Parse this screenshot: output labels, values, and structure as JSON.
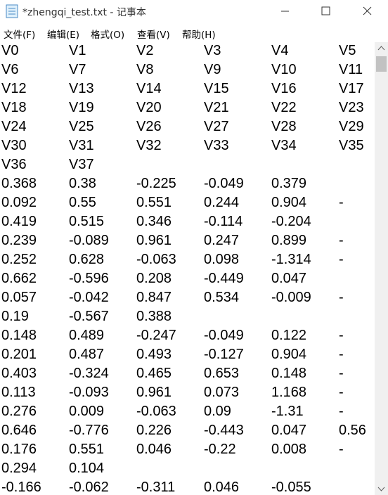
{
  "window": {
    "title": "*zhengqi_test.txt - 记事本"
  },
  "menu": [
    "文件(F)",
    "编辑(E)",
    "格式(O)",
    "查看(V)",
    "帮助(H)"
  ],
  "document": {
    "lines": [
      [
        "V0",
        "V1",
        "V2",
        "V3",
        "V4",
        "V5"
      ],
      [
        "V6",
        "V7",
        "V8",
        "V9",
        "V10",
        "V11"
      ],
      [
        "V12",
        "V13",
        "V14",
        "V15",
        "V16",
        "V17"
      ],
      [
        "V18",
        "V19",
        "V20",
        "V21",
        "V22",
        "V23"
      ],
      [
        "V24",
        "V25",
        "V26",
        "V27",
        "V28",
        "V29"
      ],
      [
        "V30",
        "V31",
        "V32",
        "V33",
        "V34",
        "V35"
      ],
      [
        "V36",
        "V37"
      ],
      [
        "0.368",
        "0.38",
        "-0.225",
        "-0.049",
        "0.379"
      ],
      [
        "0.092",
        "0.55",
        "0.551",
        "0.244",
        "0.904",
        "-"
      ],
      [
        "0.419",
        "0.515",
        "0.346",
        "-0.114",
        "-0.204"
      ],
      [
        "0.239",
        "-0.089",
        "0.961",
        "0.247",
        "0.899",
        "-"
      ],
      [
        "0.252",
        "0.628",
        "-0.063",
        "0.098",
        "-1.314",
        "-"
      ],
      [
        "0.662",
        "-0.596",
        "0.208",
        "-0.449",
        "0.047"
      ],
      [
        "0.057",
        "-0.042",
        "0.847",
        "0.534",
        "-0.009",
        "-"
      ],
      [
        "0.19",
        "-0.567",
        "0.388"
      ],
      [
        "0.148",
        "0.489",
        "-0.247",
        "-0.049",
        "0.122",
        "-"
      ],
      [
        "0.201",
        "0.487",
        "0.493",
        "-0.127",
        "0.904",
        "-"
      ],
      [
        "0.403",
        "-0.324",
        "0.465",
        "0.653",
        "0.148",
        "-"
      ],
      [
        "0.113",
        "-0.093",
        "0.961",
        "0.073",
        "1.168",
        "-"
      ],
      [
        "0.276",
        "0.009",
        "-0.063",
        "0.09",
        "-1.31",
        "-"
      ],
      [
        "0.646",
        "-0.776",
        "0.226",
        "-0.443",
        "0.047",
        "0.56"
      ],
      [
        "0.176",
        "0.551",
        "0.046",
        "-0.22",
        "0.008",
        "-"
      ],
      [
        "0.294",
        "0.104"
      ],
      [
        "-0.166",
        "-0.062",
        "-0.311",
        "0.046",
        "-0.055"
      ]
    ]
  }
}
